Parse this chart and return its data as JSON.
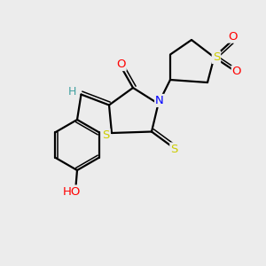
{
  "background_color": "#ececec",
  "atom_colors": {
    "S": "#cccc00",
    "O": "#ff0000",
    "N": "#0000ff",
    "C": "#000000",
    "H": "#40a0a0"
  },
  "bond_color": "#000000",
  "figsize": [
    3.0,
    3.0
  ],
  "dpi": 100,
  "xlim": [
    0,
    10
  ],
  "ylim": [
    0,
    10
  ]
}
